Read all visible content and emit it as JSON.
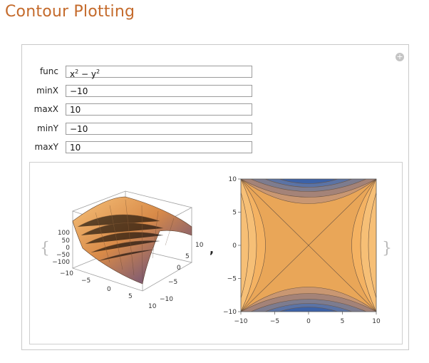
{
  "title": "Contour Plotting",
  "panel": {
    "add_icon": "plus-circle-icon",
    "controls": [
      {
        "label": "func",
        "value": "x² − y²"
      },
      {
        "label": "minX",
        "value": "−10"
      },
      {
        "label": "maxX",
        "value": "10"
      },
      {
        "label": "minY",
        "value": "−10"
      },
      {
        "label": "maxY",
        "value": "10"
      }
    ]
  },
  "output": {
    "open_brace": "{",
    "separator": ",",
    "close_brace": "}",
    "surface_plot": {
      "z_ticks": [
        "100",
        "50",
        "0",
        "−50",
        "−100"
      ],
      "x_ticks": [
        "−10",
        "−5",
        "0",
        "5",
        "10"
      ],
      "y_ticks": [
        "10",
        "5",
        "0",
        "−5",
        "−10"
      ]
    },
    "contour_plot": {
      "x_ticks": [
        "−10",
        "−5",
        "0",
        "5",
        "10"
      ],
      "y_ticks": [
        "10",
        "5",
        "0",
        "−5",
        "−10"
      ]
    }
  },
  "colors": {
    "title": "#c46a2b",
    "contour_low": "#3c62a8",
    "contour_high": "#f0aa55"
  }
}
